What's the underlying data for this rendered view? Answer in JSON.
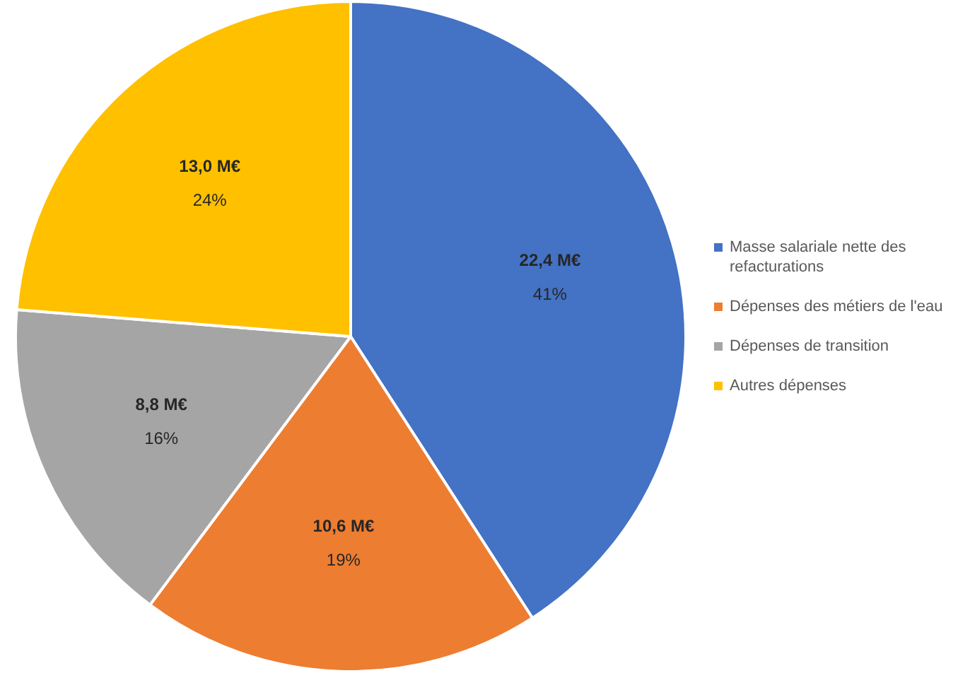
{
  "chart_data": {
    "type": "pie",
    "categories": [
      "Masse salariale nette des refacturations",
      "Dépenses des métiers de l'eau",
      "Dépenses de transition",
      "Autres dépenses"
    ],
    "values": [
      22.4,
      10.6,
      8.8,
      13.0
    ],
    "colors": [
      "#4472c4",
      "#ed7d31",
      "#a5a5a5",
      "#ffc000"
    ],
    "value_labels": [
      "22,4 M€\n41%",
      "10,6 M€\n19%",
      "8,8 M€\n16%",
      "13,0 M€\n24%"
    ],
    "legend": "right"
  }
}
